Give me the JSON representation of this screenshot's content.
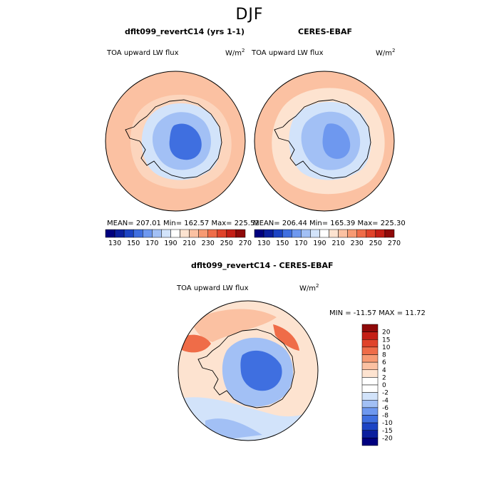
{
  "figure": {
    "season": "DJF",
    "panels": [
      {
        "title": "dflt099_revertC14 (yrs 1-1)",
        "variable": "TOA upward LW flux",
        "units_base": "W/m",
        "units_exp": "2",
        "stats": "MEAN= 207.01   Min= 162.57   Max= 225.52"
      },
      {
        "title": "CERES-EBAF",
        "variable": "TOA upward LW flux",
        "units_base": "W/m",
        "units_exp": "2",
        "stats": "MEAN= 206.44   Min= 165.39   Max= 225.30"
      },
      {
        "title": "dflt099_revertC14 - CERES-EBAF",
        "variable": "TOA upward LW flux",
        "units_base": "W/m",
        "units_exp": "2",
        "stats": "MIN = -11.57  MAX =  11.72"
      }
    ],
    "colorbar_top": {
      "ticks": [
        "130",
        "150",
        "170",
        "190",
        "210",
        "230",
        "250",
        "270"
      ],
      "colors": [
        "#00007f",
        "#0b1f9e",
        "#1c44c4",
        "#3f6fe0",
        "#6e98ef",
        "#a2c0f5",
        "#d2e3fa",
        "#ffffff",
        "#fde3d0",
        "#fbc1a2",
        "#f79a73",
        "#ef6c48",
        "#e0432a",
        "#c41f16",
        "#8f0a0a"
      ]
    },
    "colorbar_diff": {
      "ticks": [
        "20",
        "15",
        "10",
        "8",
        "6",
        "4",
        "2",
        "0",
        "-2",
        "-4",
        "-6",
        "-8",
        "-10",
        "-15",
        "-20"
      ],
      "colors": [
        "#8f0a0a",
        "#c41f16",
        "#e0432a",
        "#ef6c48",
        "#f79a73",
        "#fbc1a2",
        "#fde3d0",
        "#ffffff",
        "#ffffff",
        "#d2e3fa",
        "#a2c0f5",
        "#6e98ef",
        "#3f6fe0",
        "#1c44c4",
        "#0b1f9e",
        "#00007f"
      ]
    }
  },
  "chart_data": [
    {
      "type": "heatmap",
      "title": "dflt099_revertC14 (yrs 1-1)",
      "subtitle": "TOA upward LW flux",
      "units": "W/m2",
      "season": "DJF",
      "projection": "south polar stereographic",
      "stats": {
        "mean": 207.01,
        "min": 162.57,
        "max": 225.52
      },
      "levels": [
        130,
        140,
        150,
        160,
        170,
        180,
        190,
        200,
        210,
        220,
        230,
        240,
        250,
        260,
        270
      ],
      "regions": {
        "ocean": 215,
        "sea_ice_margin": 205,
        "coastal_antarctica": 195,
        "east_antarctic_plateau": 165
      }
    },
    {
      "type": "heatmap",
      "title": "CERES-EBAF",
      "subtitle": "TOA upward LW flux",
      "units": "W/m2",
      "season": "DJF",
      "projection": "south polar stereographic",
      "stats": {
        "mean": 206.44,
        "min": 165.39,
        "max": 225.3
      },
      "levels": [
        130,
        140,
        150,
        160,
        170,
        180,
        190,
        200,
        210,
        220,
        230,
        240,
        250,
        260,
        270
      ],
      "regions": {
        "ocean": 215,
        "sea_ice_margin": 208,
        "coastal_antarctica": 195,
        "east_antarctic_plateau": 170
      }
    },
    {
      "type": "heatmap",
      "title": "dflt099_revertC14 - CERES-EBAF",
      "subtitle": "TOA upward LW flux",
      "units": "W/m2",
      "season": "DJF",
      "projection": "south polar stereographic",
      "stats": {
        "min": -11.57,
        "max": 11.72
      },
      "levels": [
        -20,
        -15,
        -10,
        -8,
        -6,
        -4,
        -2,
        0,
        2,
        4,
        6,
        8,
        10,
        15,
        20
      ],
      "regions": {
        "pacific_sector": -4,
        "atlantic_indian_sector": 3,
        "antarctic_peninsula": 8,
        "east_antarctica": -6
      }
    }
  ]
}
